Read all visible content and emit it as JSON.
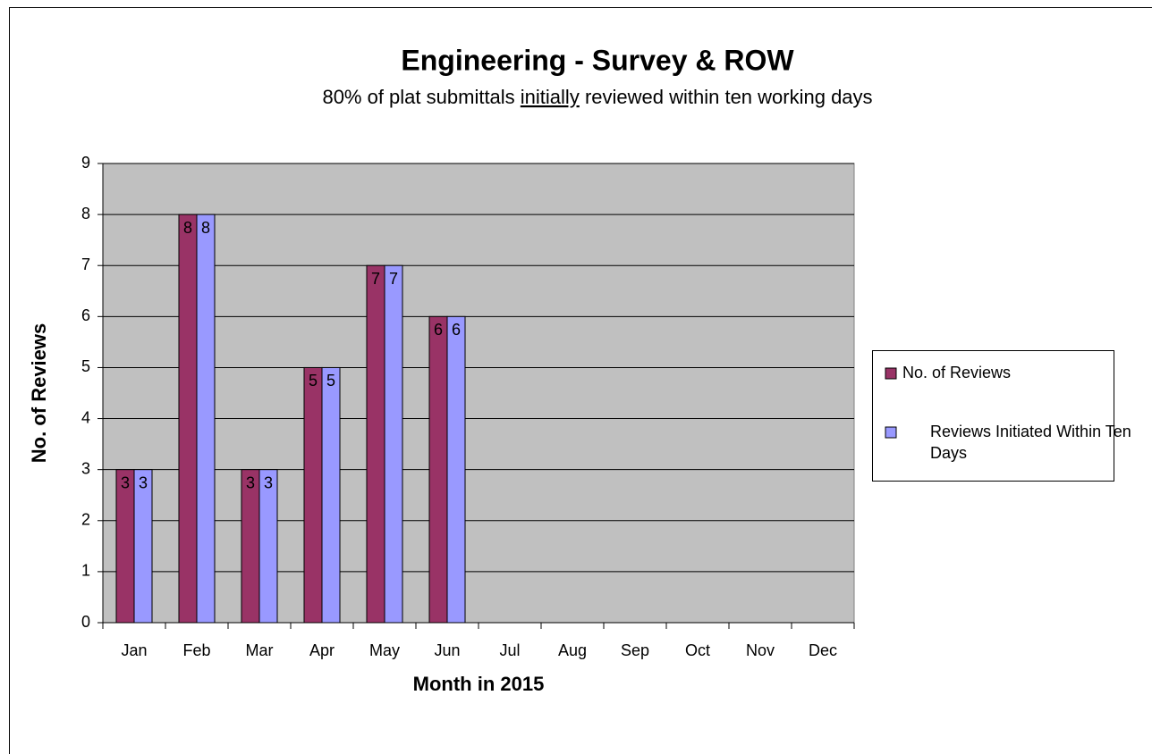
{
  "chart_data": {
    "type": "bar",
    "title": "Engineering - Survey & ROW",
    "subtitle": [
      {
        "text": "80% of plat submittals "
      },
      {
        "text": "initially",
        "underline": true
      },
      {
        "text": " reviewed within ten working days"
      }
    ],
    "x_label": "Month in 2015",
    "y_label": "No. of Reviews",
    "categories": [
      "Jan",
      "Feb",
      "Mar",
      "Apr",
      "May",
      "Jun",
      "Jul",
      "Aug",
      "Sep",
      "Oct",
      "Nov",
      "Dec"
    ],
    "series": [
      {
        "name": "No. of Reviews",
        "color": "#993366",
        "values": [
          3,
          8,
          3,
          5,
          7,
          6,
          null,
          null,
          null,
          null,
          null,
          null
        ]
      },
      {
        "name": "Reviews Initiated Within Ten Days",
        "color": "#9999ff",
        "values": [
          3,
          8,
          3,
          5,
          7,
          6,
          null,
          null,
          null,
          null,
          null,
          null
        ]
      }
    ],
    "ylim": [
      0,
      9
    ],
    "yticks": [
      0,
      1,
      2,
      3,
      4,
      5,
      6,
      7,
      8,
      9
    ],
    "grid": true,
    "plot_background": "#c0c0c0",
    "legend": "right"
  }
}
